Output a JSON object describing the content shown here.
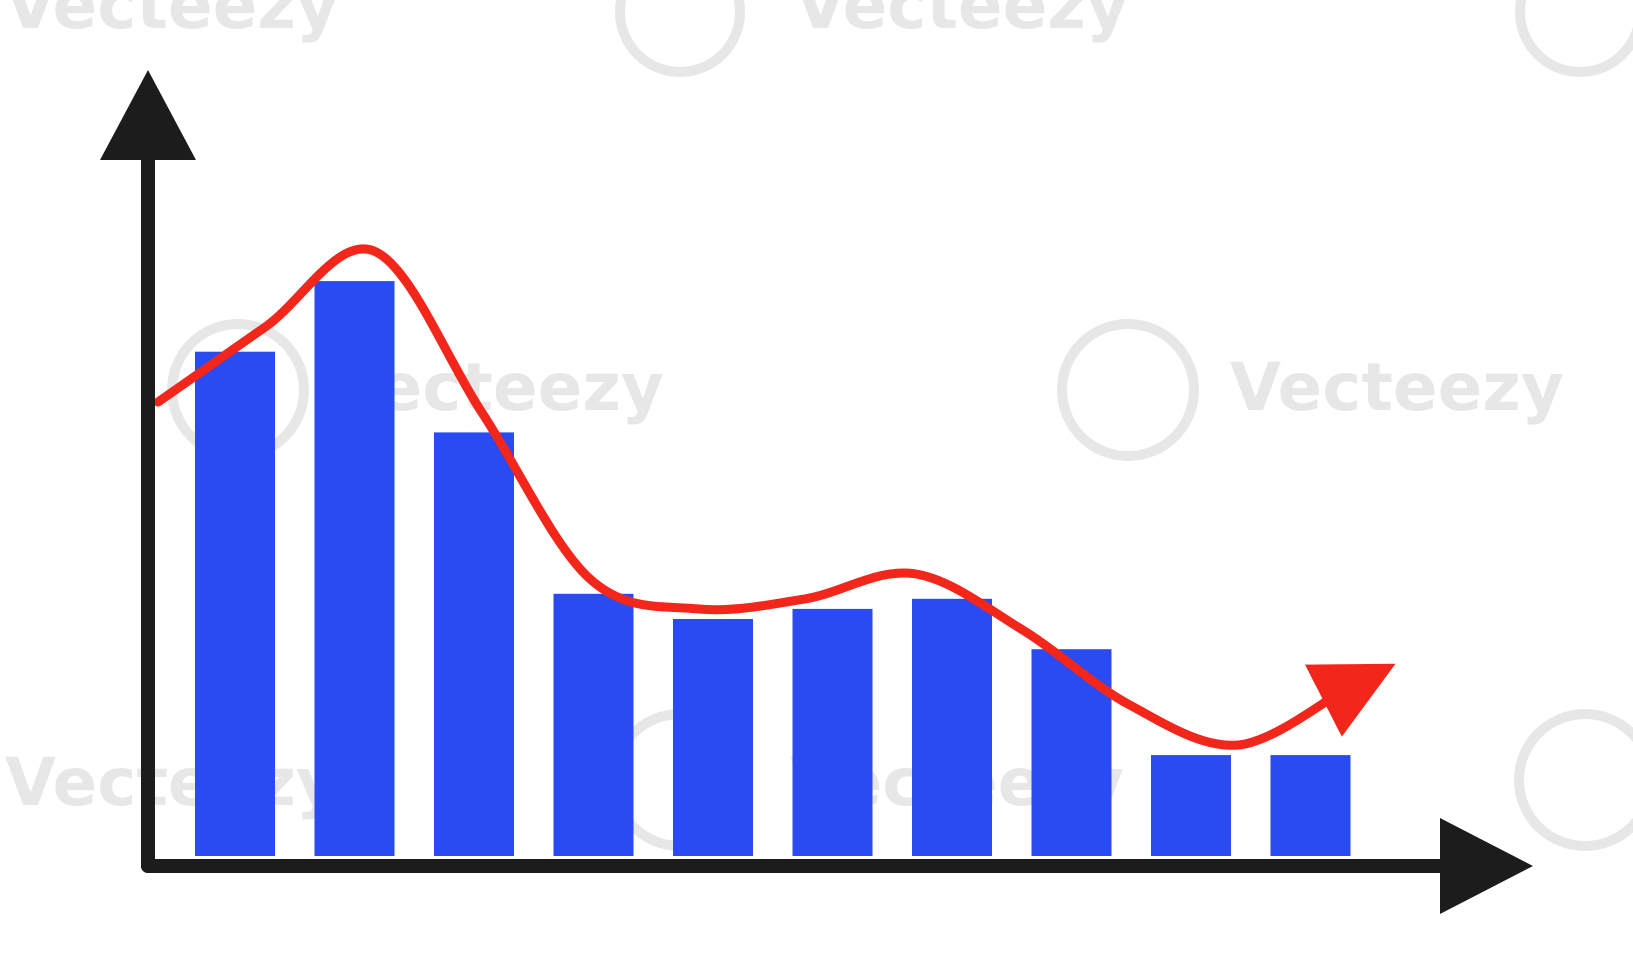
{
  "chart_data": {
    "type": "bar",
    "categories": [
      "",
      "",
      "",
      "",
      "",
      "",
      "",
      "",
      "",
      ""
    ],
    "values": [
      100,
      114,
      84,
      52,
      47,
      49,
      51,
      41,
      20,
      20
    ],
    "trend_line": [
      90,
      105,
      120,
      88,
      55,
      49,
      51,
      56,
      45,
      30,
      22,
      33
    ],
    "ylim": [
      0,
      140
    ],
    "title": "",
    "xlabel": "",
    "ylabel": "",
    "grid": false,
    "legend": "none",
    "colors": {
      "bars": "#2a4bf2",
      "trend": "#f2261a",
      "axes": "#1c1c1c",
      "watermark": "#e7e7e7"
    }
  },
  "watermark": {
    "text": "Vecteezy",
    "icon": "vecteezy-logo-icon"
  }
}
